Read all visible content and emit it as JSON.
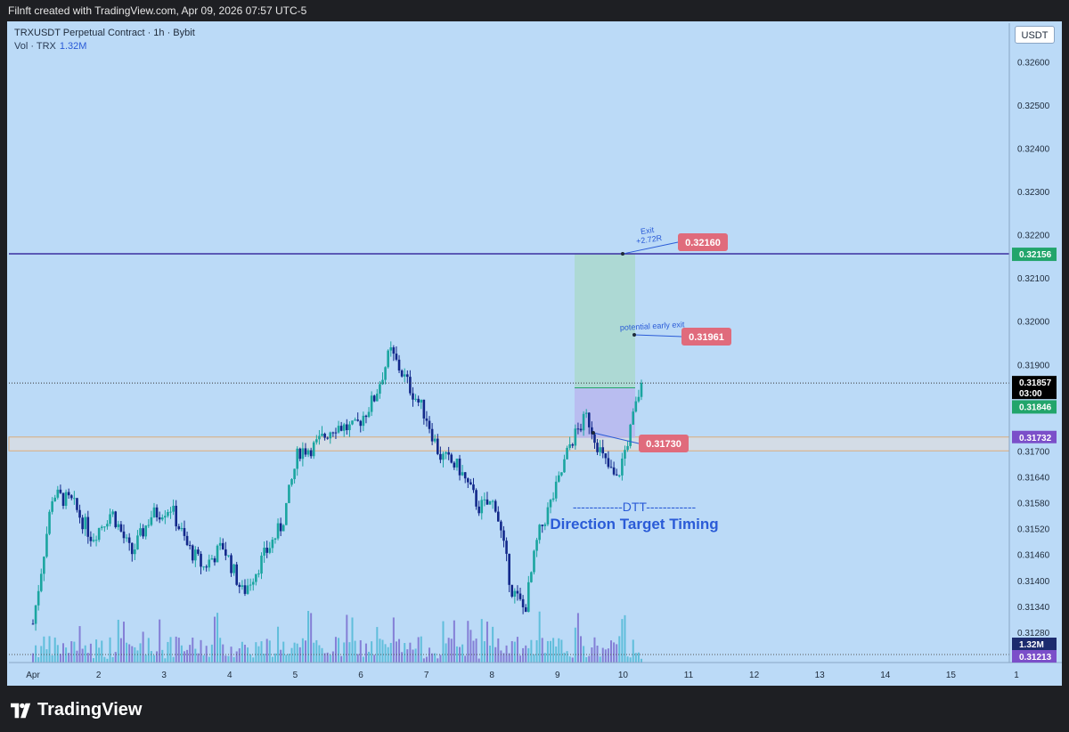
{
  "header": {
    "created_by": "Filnft created with TradingView.com, Apr 09, 2026 07:57 UTC-5"
  },
  "legend": {
    "symbol_line": "TRXUSDT Perpetual Contract · 1h · Bybit",
    "vol_label": "Vol · TRX",
    "vol_value": "1.32M"
  },
  "currency_button": "USDT",
  "footer": {
    "brand": "TradingView"
  },
  "colors": {
    "background": "#bbdaf7",
    "up_candle": "#1aa5a0",
    "down_candle": "#12288a",
    "exit_line": "#3b2ea0",
    "label_red": "#e06b7c",
    "last_price_bg": "#000000",
    "green_tag": "#22a56b",
    "purple_tag": "#7b4fc9",
    "vol_tag": "#1c2b6e",
    "dtt_text": "#2a5bd7"
  },
  "annotations": {
    "exit_text_1": "Exit",
    "exit_text_2": "+2.72R",
    "exit_label": "0.32160",
    "early_exit_text": "potential early exit",
    "early_exit_label": "0.31961",
    "stop_label": "0.31730",
    "dtt_line": "------------DTT------------",
    "dtt_subtitle": "Direction Target Timing"
  },
  "price_tags": {
    "exit_line": "0.32156",
    "last_price": "0.31857",
    "countdown": "03:00",
    "entry": "0.31846",
    "zone": "0.31732",
    "volume": "1.32M",
    "bottom": "0.31213"
  },
  "chart_data": {
    "type": "candlestick",
    "symbol": "TRXUSDT",
    "interval": "1h",
    "y_axis_ticks": [
      "0.32600",
      "0.32500",
      "0.32400",
      "0.32300",
      "0.32200",
      "0.32100",
      "0.32000",
      "0.31900",
      "0.31700",
      "0.31640",
      "0.31580",
      "0.31520",
      "0.31460",
      "0.31400",
      "0.31340",
      "0.31280"
    ],
    "x_axis_ticks": [
      "Apr",
      "2",
      "3",
      "4",
      "5",
      "6",
      "7",
      "8",
      "9",
      "10",
      "11",
      "12",
      "13",
      "14",
      "15",
      "1"
    ],
    "ylim": [
      0.3121,
      0.3269
    ],
    "levels": {
      "exit": 0.3216,
      "exit_line": 0.32156,
      "early_exit": 0.31961,
      "last_price": 0.31857,
      "entry": 0.31846,
      "stop": 0.3173,
      "zone_top": 0.31732,
      "zone_bottom": 0.317
    },
    "path_points": [
      [
        0.0,
        0.313
      ],
      [
        0.3,
        0.316
      ],
      [
        0.6,
        0.3158
      ],
      [
        0.9,
        0.315
      ],
      [
        1.2,
        0.3156
      ],
      [
        1.5,
        0.3146
      ],
      [
        1.8,
        0.3155
      ],
      [
        2.1,
        0.3157
      ],
      [
        2.35,
        0.3148
      ],
      [
        2.6,
        0.3143
      ],
      [
        2.9,
        0.3148
      ],
      [
        3.2,
        0.3137
      ],
      [
        3.5,
        0.3145
      ],
      [
        3.8,
        0.3153
      ],
      [
        4.05,
        0.317
      ],
      [
        4.3,
        0.3171
      ],
      [
        4.6,
        0.3176
      ],
      [
        4.9,
        0.3175
      ],
      [
        5.2,
        0.3182
      ],
      [
        5.45,
        0.3193
      ],
      [
        5.7,
        0.3186
      ],
      [
        6.0,
        0.3178
      ],
      [
        6.2,
        0.3169
      ],
      [
        6.5,
        0.3166
      ],
      [
        6.8,
        0.3157
      ],
      [
        7.05,
        0.3158
      ],
      [
        7.3,
        0.3138
      ],
      [
        7.5,
        0.3133
      ],
      [
        7.7,
        0.315
      ],
      [
        8.0,
        0.3162
      ],
      [
        8.2,
        0.3172
      ],
      [
        8.45,
        0.3178
      ],
      [
        8.7,
        0.3168
      ],
      [
        8.9,
        0.3163
      ],
      [
        9.1,
        0.3174
      ],
      [
        9.28,
        0.3186
      ]
    ]
  }
}
